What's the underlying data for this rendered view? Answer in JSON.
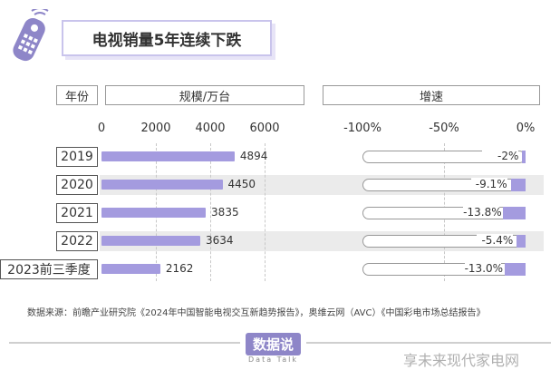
{
  "title": "电视销量5年连续下跌",
  "header": {
    "year_col": "年份",
    "sales_col": "规模/万台",
    "growth_col": "增速"
  },
  "chart_data": {
    "type": "bar",
    "categories": [
      "2019",
      "2020",
      "2021",
      "2022",
      "2023前三季度"
    ],
    "series": [
      {
        "name": "规模/万台",
        "values": [
          4894,
          4450,
          3835,
          3634,
          2162
        ]
      },
      {
        "name": "增速",
        "values": [
          -2,
          -9.1,
          -13.8,
          -5.4,
          -13.0
        ]
      }
    ],
    "sales_ticks": [
      "0",
      "2000",
      "4000",
      "6000"
    ],
    "sales_range": [
      0,
      6000
    ],
    "growth_ticks": [
      "-100%",
      "-50%",
      "0%"
    ],
    "growth_range": [
      -100,
      0
    ],
    "growth_labels": [
      "-2%",
      "-9.1%",
      "-13.8%",
      "-5.4%",
      "-13.0%"
    ],
    "value_labels": [
      "4894",
      "4450",
      "3835",
      "3634",
      "2162"
    ]
  },
  "source_text": "数据来源：前瞻产业研究院《2024年中国智能电视交互新趋势报告》，奥维云网（AVC）《中国彩电市场总结报告》",
  "logo": {
    "main": "数据说",
    "sub": "Data Talk"
  },
  "watermark": "享未来现代家电网",
  "colors": {
    "bar": "#a49bdf",
    "accent": "#8e86c8",
    "band": "#ebebeb"
  }
}
